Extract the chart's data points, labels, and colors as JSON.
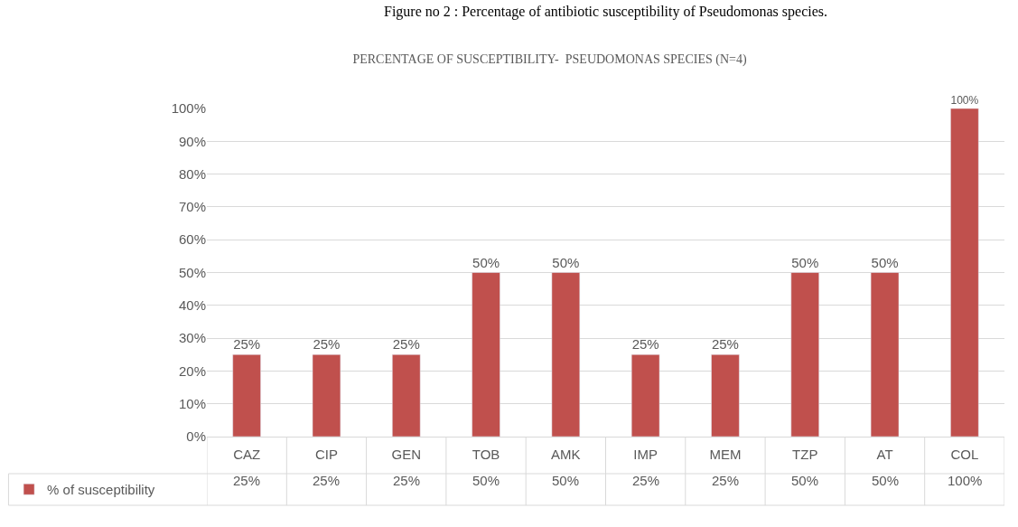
{
  "chart_data": {
    "type": "bar",
    "title": "PERCENTAGE OF SUSCEPTIBILITY-  PSEUDOMONAS SPECIES (N=4)",
    "annotations": [
      "Figure no 2 : Percentage of antibiotic susceptibility of Pseudomonas species."
    ],
    "categories": [
      "CAZ",
      "CIP",
      "GEN",
      "TOB",
      "AMK",
      "IMP",
      "MEM",
      "TZP",
      "AT",
      "COL"
    ],
    "series": [
      {
        "name": "% of susceptibility",
        "color": "#c0504d",
        "values": [
          25,
          25,
          25,
          50,
          50,
          25,
          25,
          50,
          50,
          100
        ],
        "value_labels": [
          "25%",
          "25%",
          "25%",
          "50%",
          "50%",
          "25%",
          "25%",
          "50%",
          "50%",
          "100%"
        ]
      }
    ],
    "ylim": [
      0,
      100
    ],
    "yticks": [
      {
        "value": 0,
        "label": "0%"
      },
      {
        "value": 10,
        "label": "10%"
      },
      {
        "value": 20,
        "label": "20%"
      },
      {
        "value": 30,
        "label": "30%"
      },
      {
        "value": 40,
        "label": "40%"
      },
      {
        "value": 50,
        "label": "50%"
      },
      {
        "value": 60,
        "label": "60%"
      },
      {
        "value": 70,
        "label": "70%"
      },
      {
        "value": 80,
        "label": "80%"
      },
      {
        "value": 90,
        "label": "90%"
      },
      {
        "value": 100,
        "label": "100%"
      }
    ],
    "grid": "y",
    "legend": "bottom left"
  }
}
